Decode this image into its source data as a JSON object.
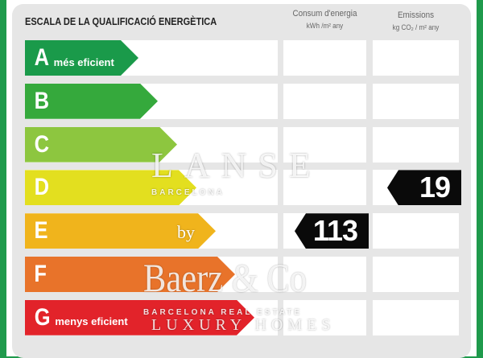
{
  "title": "ESCALA DE LA QUALIFICACIÓ ENERGÈTICA",
  "columns": {
    "energy": {
      "label": "Consum d'energia",
      "unit": "kWh /m² any"
    },
    "emissions": {
      "label": "Emissions",
      "unit": "kg CO₂ / m² any"
    }
  },
  "ratings": [
    {
      "letter": "A",
      "sub": "més eficient",
      "color": "#1a9a4a"
    },
    {
      "letter": "B",
      "sub": "",
      "color": "#35a93c"
    },
    {
      "letter": "C",
      "sub": "",
      "color": "#8dc63f"
    },
    {
      "letter": "D",
      "sub": "",
      "color": "#e3df1f"
    },
    {
      "letter": "E",
      "sub": "",
      "color": "#f0b41c"
    },
    {
      "letter": "F",
      "sub": "",
      "color": "#e8732a"
    },
    {
      "letter": "G",
      "sub": "menys eficient",
      "color": "#e2232a"
    }
  ],
  "energy_value": {
    "rating": "E",
    "value": "113"
  },
  "emissions_value": {
    "rating": "D",
    "value": "19"
  },
  "watermark": {
    "line1": "LANSE",
    "line2": "BARCELONA",
    "by": "by",
    "brand": "Baerz & Co",
    "tag": "BARCELONA REAL ESTATE",
    "sub": "LUXURY HOMES"
  }
}
